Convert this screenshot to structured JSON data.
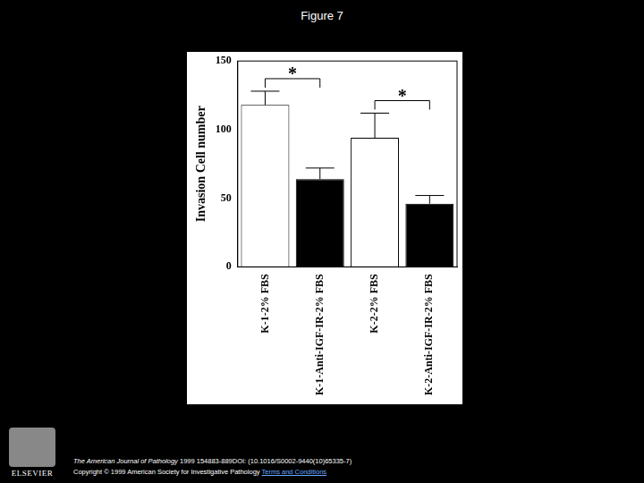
{
  "page": {
    "title": "Figure 7",
    "journal": "The American Journal of Pathology",
    "citation": "1999 154883-889DOI: (10.1016/S0002-9440(10)65335-7)",
    "copyright": "Copyright © 1999 American Society for Investigative Pathology",
    "link": "Terms and Conditions",
    "logo": "ELSEVIER"
  },
  "chart_data": {
    "type": "bar",
    "y_label": "Invasion Cell number",
    "categories": [
      "K-1-2% FBS",
      "K-1-Anti-IGF-IR-2% FBS",
      "K-2-2% FBS",
      "K-2-Anti-IGF-IR-2% FBS"
    ],
    "values": [
      118,
      64,
      94,
      46
    ],
    "errors": [
      10,
      8,
      18,
      6
    ],
    "colors": [
      "#ffffff",
      "#000000",
      "#ffffff",
      "#000000"
    ],
    "ylim": [
      0,
      150
    ],
    "yticks": [
      0,
      50,
      100,
      150
    ],
    "grid": false,
    "annotations": [
      {
        "text": "*",
        "categories": [
          "K-1-2% FBS",
          "K-1-Anti-IGF-IR-2% FBS"
        ]
      },
      {
        "text": "*",
        "categories": [
          "K-2-2% FBS",
          "K-2-Anti-IGF-IR-2% FBS"
        ]
      }
    ]
  }
}
